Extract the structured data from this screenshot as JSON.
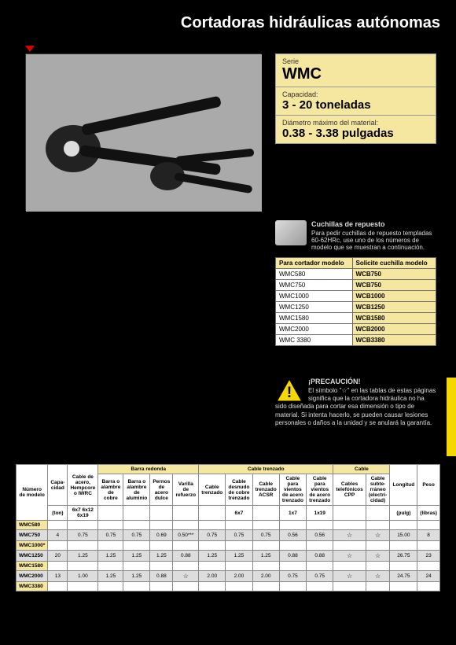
{
  "title": "Cortadoras hidráulicas autónomas",
  "info": {
    "series_label": "Serie",
    "series": "WMC",
    "capacity_label": "Capacidad:",
    "capacity": "3 - 20 toneladas",
    "diameter_label": "Diámetro máximo del material:",
    "diameter": "0.38 - 3.38 pulgadas"
  },
  "blade": {
    "title": "Cuchillas de repuesto",
    "desc": "Para pedir cuchillas de repuesto templadas 60-62HRc, use uno de los números de modelo que se muestran a continuación.",
    "col1": "Para cortador modelo",
    "col2": "Solicite cuchilla modelo",
    "rows": [
      [
        "WMC580",
        "WCB750"
      ],
      [
        "WMC750",
        "WCB750"
      ],
      [
        "WMC1000",
        "WCB1000"
      ],
      [
        "WMC1250",
        "WCB1250"
      ],
      [
        "WMC1580",
        "WCB1580"
      ],
      [
        "WMC2000",
        "WCB2000"
      ],
      [
        "WMC 3380",
        "WCB3380"
      ]
    ]
  },
  "caution": {
    "title": "¡PRECAUCIÓN!",
    "text": "El símbolo \"☆\" en las tablas de estas páginas significa que la cortadora hidráulica no ha sido diseñada para cortar esa dimensión o tipo de material. Si intenta hacerlo, se pueden causar lesiones personales o daños a la unidad y se anulará la garantía."
  },
  "spec": {
    "headers": {
      "model": "Número de modelo",
      "cap": "Capa-cidad",
      "steel": "Cable de acero, Hempcore o IWRC",
      "barra_group": "Barra redonda",
      "barra1": "Barra o alambre de cobre",
      "barra2": "Barra o alambre de aluminio",
      "barra3": "Pernos de acero dulce",
      "barra4": "Varilla de refuerzo",
      "trenzado_group": "Cable trenzado",
      "t1": "Cable trenzado",
      "t2": "Cable desnudo de cobre trenzado",
      "t3": "Cable trenzado ACSR",
      "t4": "Cable para vientos de acero trenzado",
      "t5": "Cable para vientos de acero trenzado",
      "cable_group": "Cable",
      "c1": "Cables telefónicos CPP",
      "c2": "Cable subte-rráneo (electri-cidad)",
      "long": "Longitud",
      "peso": "Peso",
      "units_ton": "(ton)",
      "units_pulg": "(pulg)",
      "units_lb": "(libras)",
      "steel_sub": "6x7\n6x12\n6x19",
      "t2_sub": "6x7",
      "t4_sub": "1x7",
      "t5_sub": "1x19"
    },
    "rows": [
      {
        "m": "WMC580",
        "hl": true,
        "cls": "white",
        "d": [
          "",
          "",
          "",
          "",
          "",
          "",
          "",
          "",
          "",
          "",
          "",
          "",
          "",
          "",
          ""
        ]
      },
      {
        "m": "WMC750",
        "hl": false,
        "cls": "gray",
        "d": [
          "4",
          "0.75",
          "0.75",
          "0.75",
          "0.69",
          "0.50***",
          "0.75",
          "0.75",
          "0.75",
          "0.56",
          "0.56",
          "☆",
          "☆",
          "15.00",
          "8"
        ]
      },
      {
        "m": "WMC1000*",
        "hl": true,
        "cls": "white",
        "d": [
          "",
          "",
          "",
          "",
          "",
          "",
          "",
          "",
          "",
          "",
          "",
          "",
          "",
          "",
          ""
        ]
      },
      {
        "m": "WMC1250",
        "hl": false,
        "cls": "gray",
        "d": [
          "20",
          "1.25",
          "1.25",
          "1.25",
          "1.25",
          "0.88",
          "1.25",
          "1.25",
          "1.25",
          "0.88",
          "0.88",
          "☆",
          "☆",
          "26.75",
          "23"
        ]
      },
      {
        "m": "WMC1580",
        "hl": true,
        "cls": "white",
        "d": [
          "",
          "",
          "",
          "",
          "",
          "",
          "",
          "",
          "",
          "",
          "",
          "",
          "",
          "",
          ""
        ]
      },
      {
        "m": "WMC2000",
        "hl": false,
        "cls": "gray",
        "d": [
          "13",
          "1.00",
          "1.25",
          "1.25",
          "0.88",
          "☆",
          "2.00",
          "2.00",
          "2.00",
          "0.75",
          "0.75",
          "☆",
          "☆",
          "24.75",
          "24"
        ]
      },
      {
        "m": "WMC3380",
        "hl": true,
        "cls": "white",
        "d": [
          "",
          "",
          "",
          "",
          "",
          "",
          "",
          "",
          "",
          "",
          "",
          "",
          "",
          "",
          ""
        ]
      }
    ]
  },
  "colors": {
    "yellow": "#f5e6a0",
    "tab": "#f5d800",
    "bg": "#000000"
  }
}
